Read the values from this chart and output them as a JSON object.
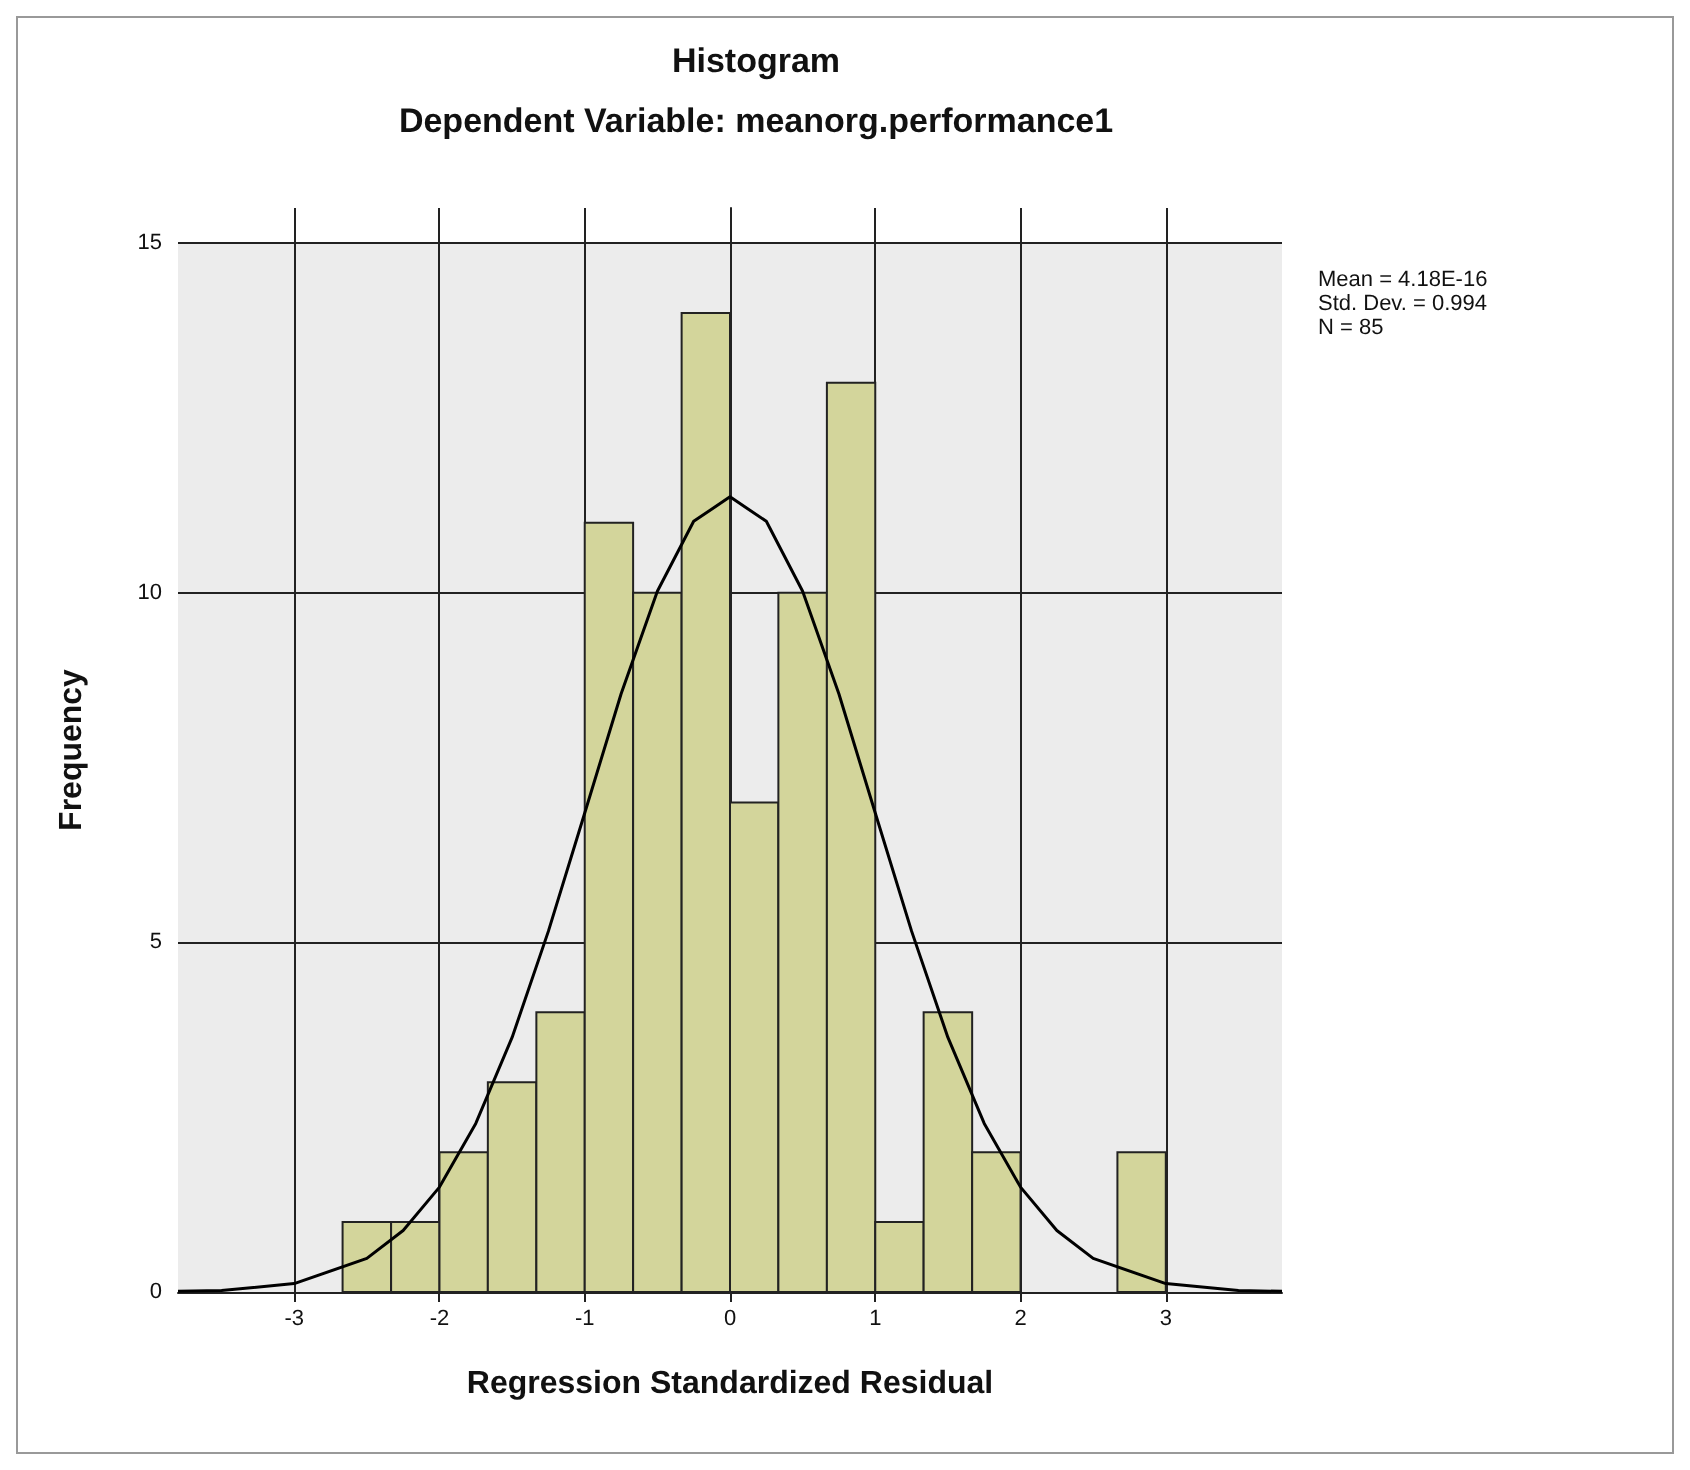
{
  "chart_data": {
    "type": "histogram",
    "title": "Histogram",
    "subtitle": "Dependent Variable: meanorg.performance1",
    "xlabel": "Regression Standardized Residual",
    "ylabel": "Frequency",
    "bins": [
      -2.667,
      -2.333,
      -2,
      -1.667,
      -1.333,
      -1,
      -0.667,
      -0.333,
      0,
      0.333,
      0.667,
      1,
      1.333,
      1.667,
      2,
      2.333,
      2.667,
      3
    ],
    "values": [
      1,
      1,
      2,
      3,
      4,
      11,
      10,
      14,
      7,
      10,
      13,
      1,
      4,
      2,
      0,
      0,
      2
    ],
    "color": "#d3d59b",
    "series": [
      {
        "type": "line",
        "color": "#000000",
        "x": [
          -3.8,
          -3.5,
          -3,
          -2.5,
          -2.25,
          -2,
          -1.75,
          -1.5,
          -1.25,
          -1,
          -0.75,
          -0.5,
          -0.25,
          0,
          0.25,
          0.5,
          0.75,
          1,
          1.25,
          1.5,
          1.75,
          2,
          2.25,
          2.5,
          3,
          3.5,
          3.8
        ],
        "values": [
          0.01,
          0.02,
          0.12,
          0.48,
          0.88,
          1.5,
          2.41,
          3.64,
          5.16,
          6.85,
          8.55,
          10.02,
          11.02,
          11.37,
          11.02,
          10.02,
          8.55,
          6.85,
          5.16,
          3.64,
          2.41,
          1.5,
          0.88,
          0.48,
          0.12,
          0.02,
          0.01
        ]
      }
    ],
    "marker": "none",
    "xlim": [
      -3.8,
      3.8
    ],
    "ylim": [
      0,
      15.5
    ],
    "xticks": [
      -3,
      -2,
      -1,
      0,
      1,
      2,
      3
    ],
    "yticks": [
      0,
      5,
      10,
      15
    ],
    "grid": true,
    "annotations": [
      "Mean = 4.18E-16",
      "Std. Dev. = 0.994",
      "N = 85"
    ]
  }
}
